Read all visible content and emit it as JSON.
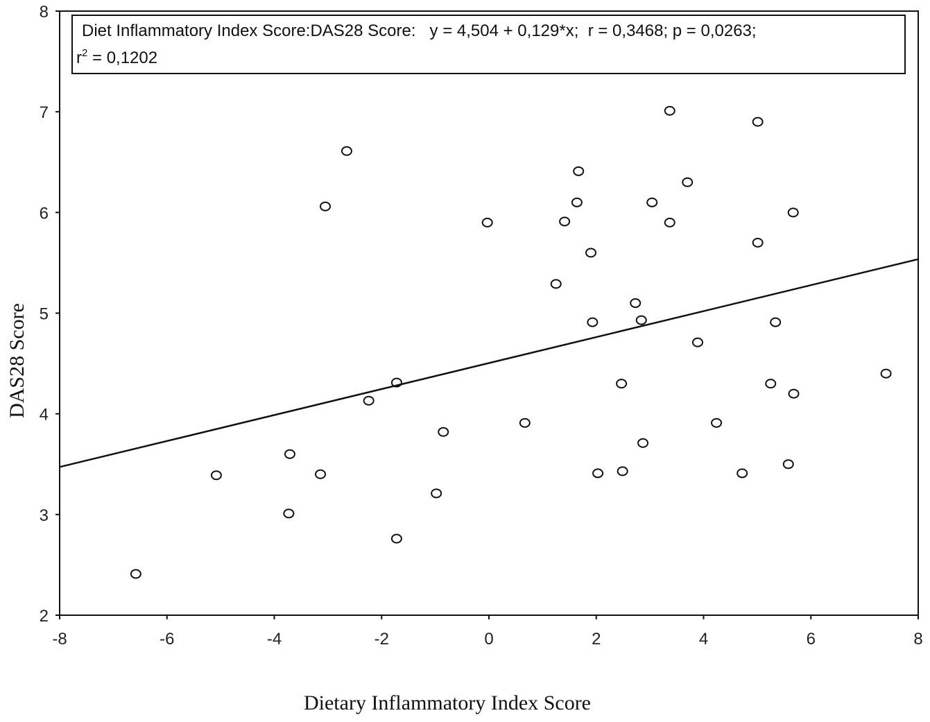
{
  "chart_data": {
    "type": "scatter",
    "xlabel": "Dietary Inflammatory Index Score",
    "ylabel": "DAS28 Score",
    "xlim": [
      -8,
      8
    ],
    "ylim": [
      2,
      8
    ],
    "xticks": [
      "-8",
      "-6",
      "-4",
      "-2",
      "0",
      "2",
      "4",
      "6",
      "8"
    ],
    "yticks": [
      "2",
      "3",
      "4",
      "5",
      "6",
      "7",
      "8"
    ],
    "grid": false,
    "legend": {
      "placement": "top",
      "line1": "Diet Inflammatory Index Score:DAS28 Score:   y = 4,504 + 0,129*x;  r = 0,3468; p = 0,0263;",
      "line2_prefix": "r",
      "line2_sup": "2",
      "line2_rest": " = 0,1202"
    },
    "fit": {
      "intercept": 4.504,
      "slope": 0.129
    },
    "points": [
      [
        -6.58,
        2.41
      ],
      [
        -5.08,
        3.39
      ],
      [
        -3.71,
        3.6
      ],
      [
        -3.73,
        3.01
      ],
      [
        -3.14,
        3.4
      ],
      [
        -3.05,
        6.06
      ],
      [
        -2.65,
        6.61
      ],
      [
        -2.24,
        4.13
      ],
      [
        -1.72,
        4.31
      ],
      [
        -1.72,
        2.76
      ],
      [
        -0.98,
        3.21
      ],
      [
        -0.85,
        3.82
      ],
      [
        -0.03,
        5.9
      ],
      [
        0.67,
        3.91
      ],
      [
        1.25,
        5.29
      ],
      [
        1.41,
        5.91
      ],
      [
        1.64,
        6.1
      ],
      [
        1.67,
        6.41
      ],
      [
        1.9,
        5.6
      ],
      [
        1.93,
        4.91
      ],
      [
        2.03,
        3.41
      ],
      [
        2.47,
        4.3
      ],
      [
        2.49,
        3.43
      ],
      [
        2.73,
        5.1
      ],
      [
        2.84,
        4.93
      ],
      [
        2.87,
        3.71
      ],
      [
        3.04,
        6.1
      ],
      [
        3.37,
        7.01
      ],
      [
        3.37,
        5.9
      ],
      [
        3.7,
        6.3
      ],
      [
        3.89,
        4.71
      ],
      [
        4.24,
        3.91
      ],
      [
        4.72,
        3.41
      ],
      [
        5.01,
        6.9
      ],
      [
        5.01,
        5.7
      ],
      [
        5.25,
        4.3
      ],
      [
        5.34,
        4.91
      ],
      [
        5.58,
        3.5
      ],
      [
        5.67,
        6.0
      ],
      [
        5.68,
        4.2
      ],
      [
        7.4,
        4.4
      ]
    ]
  }
}
